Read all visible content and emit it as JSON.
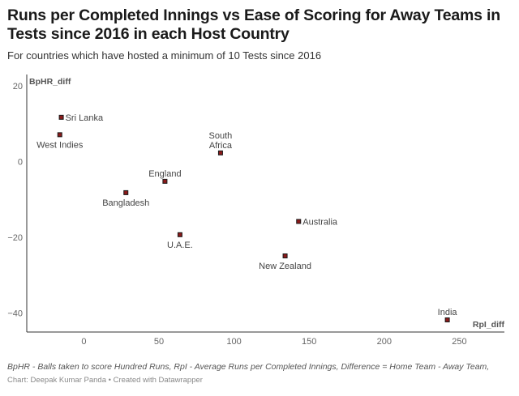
{
  "chart_data": {
    "type": "scatter",
    "title": "Runs per Completed Innings vs Ease of Scoring for Away Teams in Tests since 2016 in each Host Country",
    "subtitle": "For countries which have hosted a minimum of 10 Tests since 2016",
    "xlabel": "RpI_diff",
    "ylabel": "BpHR_diff",
    "xlim": [
      -38,
      280
    ],
    "ylim": [
      -45,
      23
    ],
    "xticks": [
      0,
      50,
      100,
      150,
      200,
      250
    ],
    "yticks": [
      -40,
      -20,
      0,
      20
    ],
    "grid": false,
    "point_color": "#8b1a1a",
    "points": [
      {
        "label": "Sri Lanka",
        "x": -15,
        "y": 11.7,
        "label_pos": "right"
      },
      {
        "label": "West Indies",
        "x": -16,
        "y": 7.1,
        "label_pos": "below"
      },
      {
        "label": "South Africa",
        "label_lines": [
          "South",
          "Africa"
        ],
        "x": 91,
        "y": 2.3,
        "label_pos": "above"
      },
      {
        "label": "England",
        "x": 54,
        "y": -5.2,
        "label_pos": "above"
      },
      {
        "label": "Bangladesh",
        "x": 28,
        "y": -8.2,
        "label_pos": "below"
      },
      {
        "label": "Australia",
        "x": 143,
        "y": -15.8,
        "label_pos": "right"
      },
      {
        "label": "U.A.E.",
        "x": 64,
        "y": -19.3,
        "label_pos": "below"
      },
      {
        "label": "New Zealand",
        "x": 134,
        "y": -24.9,
        "label_pos": "below"
      },
      {
        "label": "India",
        "x": 242,
        "y": -41.8,
        "label_pos": "above"
      }
    ]
  },
  "footnote": "BpHR - Balls taken to score Hundred Runs, RpI - Average Runs per Completed Innings, Difference = Home Team - Away Team,",
  "credit": "Chart: Deepak Kumar Panda • Created with Datawrapper"
}
